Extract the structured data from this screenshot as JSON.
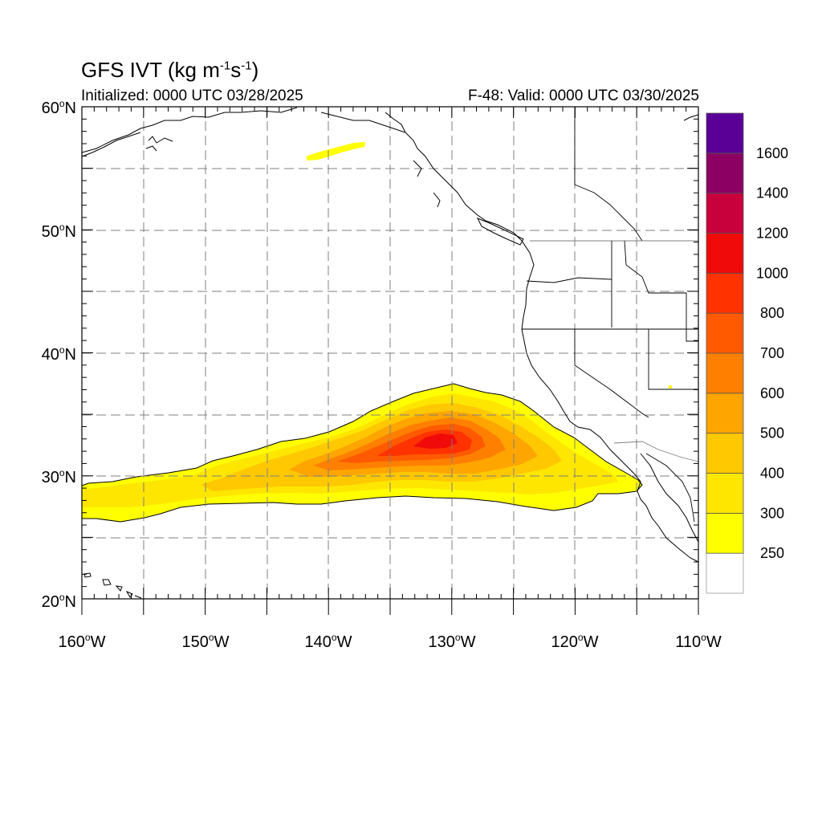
{
  "header": {
    "title_main": "GFS IVT (kg m",
    "title_sup1": "-1",
    "title_mid": "s",
    "title_sup2": "-1",
    "title_end": ")",
    "initialized": "Initialized: 0000 UTC 03/28/2025",
    "valid": "F-48: Valid: 0000 UTC 03/30/2025"
  },
  "axes": {
    "lat_labels": [
      {
        "value": "60",
        "suffix": "N"
      },
      {
        "value": "50",
        "suffix": "N"
      },
      {
        "value": "40",
        "suffix": "N"
      },
      {
        "value": "30",
        "suffix": "N"
      },
      {
        "value": "20",
        "suffix": "N"
      }
    ],
    "lon_labels": [
      {
        "value": "160",
        "suffix": "W"
      },
      {
        "value": "150",
        "suffix": "W"
      },
      {
        "value": "140",
        "suffix": "W"
      },
      {
        "value": "130",
        "suffix": "W"
      },
      {
        "value": "120",
        "suffix": "W"
      },
      {
        "value": "110",
        "suffix": "W"
      }
    ],
    "lat_range": [
      20,
      60
    ],
    "lon_range": [
      -160,
      -110
    ]
  },
  "colorbar": {
    "levels": [
      {
        "label": "250",
        "color": "#ffffff"
      },
      {
        "label": "300",
        "color": "#ffff00"
      },
      {
        "label": "400",
        "color": "#ffe600"
      },
      {
        "label": "500",
        "color": "#ffc800"
      },
      {
        "label": "600",
        "color": "#ffa500"
      },
      {
        "label": "700",
        "color": "#ff8000"
      },
      {
        "label": "800",
        "color": "#ff5a00"
      },
      {
        "label": "1000",
        "color": "#ff3200"
      },
      {
        "label": "1200",
        "color": "#f00a0a"
      },
      {
        "label": "1400",
        "color": "#c8003c"
      },
      {
        "label": "1600",
        "color": "#8c0064"
      },
      {
        "label": "",
        "color": "#5a0096"
      }
    ]
  },
  "colors": {
    "land_line": "#000000",
    "grid_line": "#7f7f7f",
    "ivt_250": "#ffff00",
    "ivt_300": "#ffe600",
    "ivt_400": "#ffc800",
    "ivt_500": "#ffa500",
    "ivt_600": "#ff8000",
    "ivt_700": "#ff5a00",
    "ivt_800": "#ff3200",
    "ivt_1000": "#f00a0a"
  }
}
